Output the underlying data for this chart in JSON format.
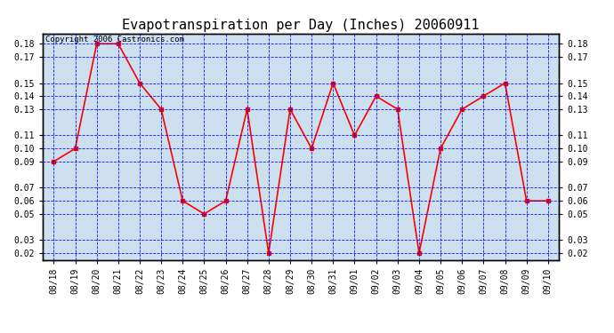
{
  "title": "Evapotranspiration per Day (Inches) 20060911",
  "copyright_text": "Copyright 2006 Castronics.com",
  "x_labels": [
    "08/18",
    "08/19",
    "08/20",
    "08/21",
    "08/22",
    "08/23",
    "08/24",
    "08/25",
    "08/26",
    "08/27",
    "08/28",
    "08/29",
    "08/30",
    "08/31",
    "09/01",
    "09/02",
    "09/03",
    "09/04",
    "09/05",
    "09/06",
    "09/07",
    "09/08",
    "09/09",
    "09/10"
  ],
  "y_values": [
    0.09,
    0.1,
    0.18,
    0.18,
    0.15,
    0.13,
    0.06,
    0.05,
    0.06,
    0.13,
    0.02,
    0.13,
    0.1,
    0.15,
    0.11,
    0.14,
    0.13,
    0.02,
    0.1,
    0.13,
    0.14,
    0.15,
    0.06,
    0.06
  ],
  "line_color": "red",
  "marker": "s",
  "marker_size": 2.5,
  "plot_bg_color": "#cce0f0",
  "grid_color": "blue",
  "yticks": [
    0.02,
    0.03,
    0.05,
    0.06,
    0.07,
    0.09,
    0.1,
    0.11,
    0.13,
    0.14,
    0.15,
    0.17,
    0.18
  ],
  "ylim": [
    0.015,
    0.188
  ],
  "title_fontsize": 11,
  "tick_fontsize": 7,
  "copyright_fontsize": 6.5
}
